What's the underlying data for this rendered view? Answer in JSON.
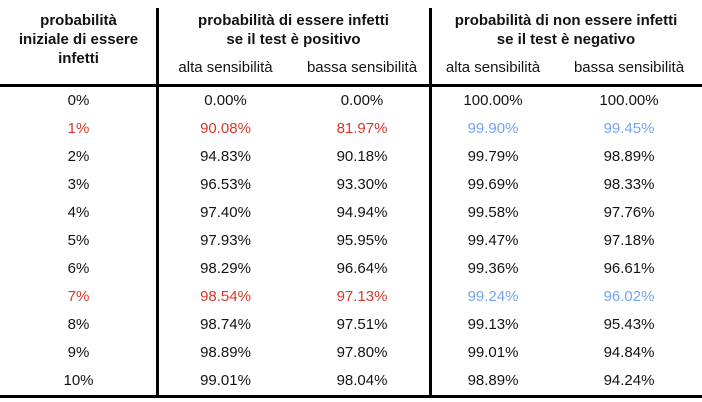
{
  "header": {
    "initial_column_title": "probabilità\niniziale di essere\ninfetti",
    "group_positive": {
      "title": "probabilità di essere infetti\nse il test è positivo",
      "sub_alta": "alta sensibilità",
      "sub_bassa": "bassa sensibilità"
    },
    "group_negative": {
      "title": "probabilità di non essere infetti\nse il test è negativo",
      "sub_alta": "alta sensibilità",
      "sub_bassa": "bassa sensibilità"
    }
  },
  "colors": {
    "text": "#131313",
    "highlight_red": "#d5392b",
    "highlight_blue": "#73a5f5",
    "rule_lines": "#000000",
    "background": "#ffffff"
  },
  "chart_data": {
    "type": "table",
    "title": "",
    "columns": [
      "probabilità iniziale di essere infetti",
      "probabilità di essere infetti se il test è positivo — alta sensibilità",
      "probabilità di essere infetti se il test è positivo — bassa sensibilità",
      "probabilità di non essere infetti se il test è negativo — alta sensibilità",
      "probabilità di non essere infetti se il test è negativo — bassa sensibilità"
    ],
    "highlighted_rows": [
      "1%",
      "7%"
    ],
    "rows": [
      {
        "cells": [
          "0%",
          "0.00%",
          "0.00%",
          "100.00%",
          "100.00%"
        ],
        "highlight": false
      },
      {
        "cells": [
          "1%",
          "90.08%",
          "81.97%",
          "99.90%",
          "99.45%"
        ],
        "highlight": true
      },
      {
        "cells": [
          "2%",
          "94.83%",
          "90.18%",
          "99.79%",
          "98.89%"
        ],
        "highlight": false
      },
      {
        "cells": [
          "3%",
          "96.53%",
          "93.30%",
          "99.69%",
          "98.33%"
        ],
        "highlight": false
      },
      {
        "cells": [
          "4%",
          "97.40%",
          "94.94%",
          "99.58%",
          "97.76%"
        ],
        "highlight": false
      },
      {
        "cells": [
          "5%",
          "97.93%",
          "95.95%",
          "99.47%",
          "97.18%"
        ],
        "highlight": false
      },
      {
        "cells": [
          "6%",
          "98.29%",
          "96.64%",
          "99.36%",
          "96.61%"
        ],
        "highlight": false
      },
      {
        "cells": [
          "7%",
          "98.54%",
          "97.13%",
          "99.24%",
          "96.02%"
        ],
        "highlight": true
      },
      {
        "cells": [
          "8%",
          "98.74%",
          "97.51%",
          "99.13%",
          "95.43%"
        ],
        "highlight": false
      },
      {
        "cells": [
          "9%",
          "98.89%",
          "97.80%",
          "99.01%",
          "94.84%"
        ],
        "highlight": false
      },
      {
        "cells": [
          "10%",
          "99.01%",
          "98.04%",
          "98.89%",
          "94.24%"
        ],
        "highlight": false
      }
    ]
  }
}
